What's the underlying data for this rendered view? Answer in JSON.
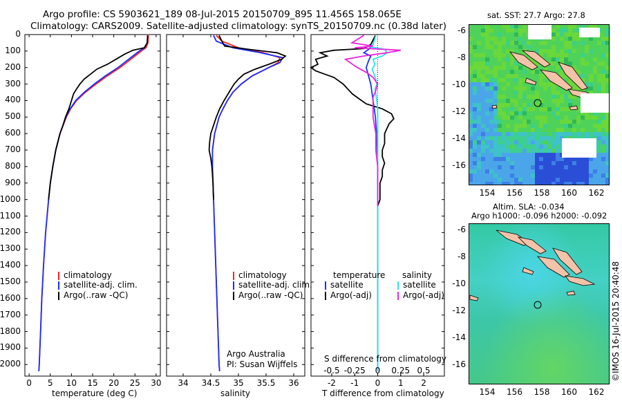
{
  "header": {
    "line1": "Argo profile: CS 5903621_189 08-Jul-2015 20150709_895 11.456S 158.065E",
    "line2": "Climatology: CARS2009. Satellite-adjusted climatology: synTS_20150709.nc (0.38d later)"
  },
  "colors": {
    "climatology": "#ff2020",
    "satellite": "#1a2cff",
    "argo": "#000000",
    "sal_satellite": "#22e6ee",
    "sal_argo": "#ee22dd"
  },
  "depth_axis": {
    "ticks": [
      "0",
      "100",
      "200",
      "300",
      "400",
      "500",
      "600",
      "700",
      "800",
      "900",
      "1000",
      "1100",
      "1200",
      "1300",
      "1400",
      "1500",
      "1600",
      "1700",
      "1800",
      "1900",
      "2000"
    ],
    "range": [
      0,
      2070
    ]
  },
  "chart_data": [
    {
      "type": "line",
      "name": "temperature-profile",
      "xlabel": "temperature (deg C)",
      "xlim": [
        -1,
        31
      ],
      "xticks": [
        "0",
        "5",
        "10",
        "15",
        "20",
        "25",
        "30"
      ],
      "ylim": [
        0,
        2070
      ],
      "legend": [
        "climatology",
        "satellite-adj. clim.",
        "Argo(..raw -QC)"
      ],
      "series": [
        {
          "name": "climatology",
          "depth": [
            5,
            50,
            80,
            100,
            130,
            160,
            200,
            250,
            300,
            350,
            400,
            450,
            500,
            600,
            700,
            800,
            900,
            1000,
            1200,
            1400,
            1600,
            1800,
            2000,
            2040
          ],
          "values": [
            28.2,
            28.1,
            27.6,
            26.5,
            25.0,
            23.5,
            21.5,
            18.5,
            15.8,
            13.3,
            11.2,
            9.8,
            8.8,
            7.3,
            6.3,
            5.6,
            5.0,
            4.6,
            3.9,
            3.4,
            3.0,
            2.7,
            2.4,
            2.3
          ]
        },
        {
          "name": "satellite",
          "depth": [
            5,
            50,
            80,
            100,
            130,
            160,
            200,
            250,
            300,
            350,
            400,
            450,
            500,
            600,
            700,
            800,
            900,
            1000,
            1200,
            1400,
            1600,
            1800,
            2000,
            2040
          ],
          "values": [
            28.0,
            27.9,
            27.3,
            26.0,
            24.5,
            23.0,
            21.0,
            18.0,
            15.4,
            13.0,
            11.0,
            9.7,
            8.7,
            7.3,
            6.3,
            5.6,
            5.0,
            4.6,
            3.9,
            3.4,
            3.0,
            2.7,
            2.4,
            2.3
          ]
        },
        {
          "name": "argo",
          "depth": [
            5,
            50,
            80,
            95,
            120,
            150,
            180,
            210,
            240,
            270,
            300,
            330,
            360,
            400,
            450,
            500,
            550,
            600,
            700,
            800,
            900,
            1000
          ],
          "values": [
            28.0,
            27.9,
            27.2,
            24.5,
            22.5,
            20.5,
            18.5,
            16.0,
            14.5,
            13.0,
            12.0,
            11.2,
            10.5,
            10.0,
            9.4,
            8.6,
            8.0,
            7.3,
            6.3,
            5.6,
            5.0,
            4.6
          ]
        }
      ]
    },
    {
      "type": "line",
      "name": "salinity-profile",
      "xlabel": "salinity",
      "xlim": [
        33.7,
        36.2
      ],
      "xticks": [
        "34",
        "34.5",
        "35",
        "35.5",
        "36"
      ],
      "ylim": [
        0,
        2070
      ],
      "legend": [
        "climatology",
        "satellite-adj. clim.",
        "Argo(..raw -QC)"
      ],
      "annotation": [
        "Argo Australia",
        "PI: Susan Wijffels"
      ],
      "series": [
        {
          "name": "climatology",
          "depth": [
            5,
            40,
            80,
            110,
            140,
            170,
            200,
            250,
            300,
            350,
            400,
            450,
            500,
            600,
            700,
            800,
            900,
            1000,
            1200,
            1400,
            1600,
            1800,
            2000,
            2040
          ],
          "values": [
            34.6,
            34.7,
            35.0,
            35.45,
            35.75,
            35.72,
            35.55,
            35.25,
            35.05,
            34.9,
            34.8,
            34.72,
            34.65,
            34.57,
            34.53,
            34.53,
            34.54,
            34.55,
            34.57,
            34.59,
            34.61,
            34.63,
            34.65,
            34.66
          ]
        },
        {
          "name": "satellite",
          "depth": [
            5,
            40,
            80,
            110,
            140,
            170,
            200,
            250,
            300,
            350,
            400,
            450,
            500,
            600,
            700,
            800,
            900,
            1000,
            1200,
            1400,
            1600,
            1800,
            2000,
            2040
          ],
          "values": [
            34.55,
            34.6,
            34.9,
            35.4,
            35.8,
            35.75,
            35.55,
            35.25,
            35.05,
            34.9,
            34.8,
            34.72,
            34.65,
            34.57,
            34.53,
            34.53,
            34.54,
            34.55,
            34.57,
            34.59,
            34.61,
            34.63,
            34.65,
            34.66
          ]
        },
        {
          "name": "argo",
          "depth": [
            5,
            40,
            70,
            90,
            110,
            130,
            150,
            180,
            210,
            240,
            270,
            300,
            350,
            400,
            450,
            500,
            550,
            600,
            650,
            700,
            750,
            800,
            900,
            1000
          ],
          "values": [
            34.65,
            34.7,
            34.75,
            35.2,
            35.7,
            35.85,
            35.78,
            35.55,
            35.3,
            35.1,
            35.0,
            34.92,
            34.83,
            34.74,
            34.66,
            34.6,
            34.55,
            34.5,
            34.48,
            34.47,
            34.5,
            34.52,
            34.54,
            34.55
          ]
        }
      ]
    },
    {
      "type": "line",
      "name": "difference-profile",
      "xlabel_bottom": "T difference from climatology",
      "xlabel_top": "S difference from climatology",
      "xlim": [
        -2.9,
        2.9
      ],
      "xticks_bottom": [
        "-2",
        "-1",
        "0",
        "1",
        "2"
      ],
      "xticks_top": [
        "-0.5",
        "-0.25",
        "0",
        "0.25",
        "0.5"
      ],
      "ylim": [
        0,
        2070
      ],
      "legend": {
        "temperature_head": "temperature",
        "salinity_head": "salinity",
        "t_items": [
          "satellite",
          "Argo(-adj)"
        ],
        "s_items": [
          "satellite",
          "Argo(-adj)"
        ]
      },
      "series": [
        {
          "name": "T satellite",
          "depth": [
            5,
            60,
            90,
            110,
            130,
            160,
            200,
            250,
            300,
            400,
            500,
            600,
            800,
            1000,
            1500,
            2000,
            2040
          ],
          "values": [
            -0.1,
            -0.2,
            -0.4,
            -0.6,
            -0.3,
            -0.4,
            -0.5,
            -0.4,
            -0.3,
            -0.2,
            -0.1,
            -0.05,
            0,
            0,
            0,
            0,
            0
          ]
        },
        {
          "name": "T argo",
          "depth": [
            5,
            60,
            85,
            95,
            110,
            130,
            150,
            180,
            200,
            220,
            240,
            260,
            280,
            300,
            330,
            360,
            390,
            420,
            450,
            480,
            510,
            540,
            570,
            600,
            630,
            660,
            700,
            740,
            780,
            820,
            860,
            900,
            950,
            1000,
            1040
          ],
          "values": [
            -0.1,
            -0.3,
            -0.6,
            -1.9,
            -2.5,
            -2.2,
            -2.7,
            -2.6,
            -2.9,
            -2.7,
            -2.3,
            -1.9,
            -1.7,
            -1.5,
            -1.3,
            -1.1,
            -0.8,
            -0.5,
            0.2,
            0.6,
            0.7,
            0.5,
            0.4,
            0.3,
            0.3,
            0.3,
            0.2,
            0.2,
            0.3,
            0.2,
            0.2,
            0.1,
            0.1,
            0.1,
            0
          ]
        },
        {
          "name": "S satellite",
          "depth": [
            5,
            60,
            75,
            90,
            110,
            130,
            150,
            180,
            210,
            240,
            270,
            300,
            330,
            360,
            400,
            450,
            500,
            600,
            800,
            1000,
            1500,
            2040
          ],
          "values": [
            -0.02,
            -0.05,
            -0.08,
            0.08,
            0.1,
            0.05,
            -0.05,
            -0.03,
            -0.06,
            -0.04,
            -0.02,
            -0.01,
            -0.03,
            -0.02,
            -0.01,
            0,
            0,
            0,
            0,
            0,
            0,
            0
          ]
        },
        {
          "name": "S argo",
          "depth": [
            5,
            50,
            70,
            80,
            95,
            110,
            130,
            150,
            170,
            200,
            230,
            260,
            300,
            340,
            380,
            420,
            500,
            600,
            700,
            800,
            900,
            1000,
            1040
          ],
          "values": [
            -0.15,
            -0.28,
            -0.05,
            -0.25,
            0.25,
            0.1,
            -0.15,
            -0.35,
            -0.3,
            -0.22,
            -0.12,
            -0.05,
            0,
            -0.02,
            -0.05,
            -0.05,
            -0.05,
            -0.02,
            -0.02,
            0,
            0,
            0,
            0
          ]
        }
      ]
    }
  ],
  "maps": {
    "sst_title": "sat. SST: 27.7  Argo: 27.8",
    "sla_title1": "Altim. SLA: -0.034",
    "sla_title2": "Argo h1000: -0.096  h2000: -0.092",
    "lon_ticks": [
      "154",
      "156",
      "158",
      "160",
      "162"
    ],
    "lat_ticks": [
      "-6",
      "-8",
      "-10",
      "-12",
      "-14",
      "-16"
    ],
    "float_position": {
      "lon": 158.065,
      "lat": -11.456
    }
  },
  "footer": {
    "credit": "©IMOS 16-Jul-2015 20:40:48"
  }
}
